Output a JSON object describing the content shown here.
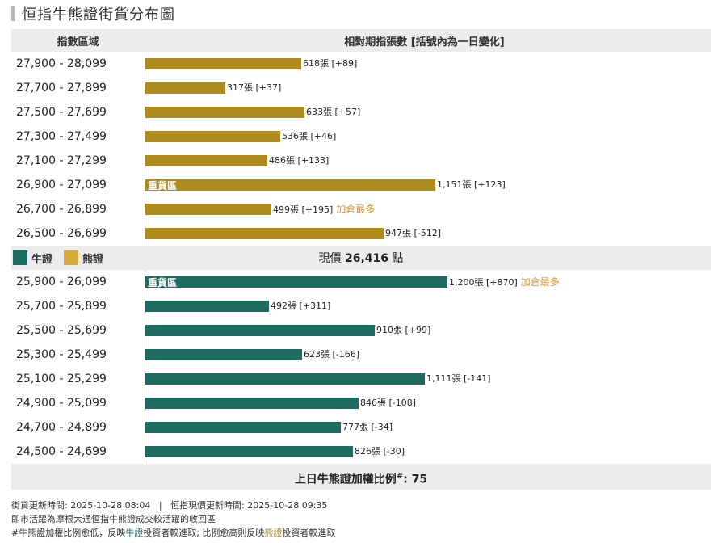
{
  "title": "恒指牛熊證街貨分布圖",
  "header": {
    "col_range": "指數區域",
    "col_value": "相對期指張數 [括號內為一日變化]"
  },
  "legend": {
    "bull": "牛證",
    "bear": "熊證"
  },
  "colors": {
    "bull": "#1e6b61",
    "bear": "#b08c1e"
  },
  "price": {
    "label": "現價",
    "value": "26,416",
    "unit": "點"
  },
  "ratio": {
    "label": "上日牛熊證加權比例",
    "sup": "#",
    "sep": ":",
    "value": "75"
  },
  "chart_data": {
    "type": "bar",
    "orientation": "horizontal",
    "unit": "張",
    "bear": [
      {
        "range": "27,900 - 28,099",
        "value": 618,
        "change": "+89",
        "label": "618張 [+89]"
      },
      {
        "range": "27,700 - 27,899",
        "value": 317,
        "change": "+37",
        "label": "317張 [+37]"
      },
      {
        "range": "27,500 - 27,699",
        "value": 633,
        "change": "+57",
        "label": "633張 [+57]"
      },
      {
        "range": "27,300 - 27,499",
        "value": 536,
        "change": "+46",
        "label": "536張 [+46]"
      },
      {
        "range": "27,100 - 27,299",
        "value": 486,
        "change": "+133",
        "label": "486張 [+133]"
      },
      {
        "range": "26,900 - 27,099",
        "value": 1151,
        "change": "+123",
        "label": "1,151張 [+123]",
        "heavy": "重貨區"
      },
      {
        "range": "26,700 - 26,899",
        "value": 499,
        "change": "+195",
        "label": "499張 [+195]",
        "most": "加倉最多"
      },
      {
        "range": "26,500 - 26,699",
        "value": 947,
        "change": "-512",
        "label": "947張 [-512]"
      }
    ],
    "bull": [
      {
        "range": "25,900 - 26,099",
        "value": 1200,
        "change": "+870",
        "label": "1,200張 [+870]",
        "heavy": "重貨區",
        "most": "加倉最多"
      },
      {
        "range": "25,700 - 25,899",
        "value": 492,
        "change": "+311",
        "label": "492張 [+311]"
      },
      {
        "range": "25,500 - 25,699",
        "value": 910,
        "change": "+99",
        "label": "910張 [+99]"
      },
      {
        "range": "25,300 - 25,499",
        "value": 623,
        "change": "-166",
        "label": "623張 [-166]"
      },
      {
        "range": "25,100 - 25,299",
        "value": 1111,
        "change": "-141",
        "label": "1,111張 [-141]"
      },
      {
        "range": "24,900 - 25,099",
        "value": 846,
        "change": "-108",
        "label": "846張 [-108]"
      },
      {
        "range": "24,700 - 24,899",
        "value": 777,
        "change": "-34",
        "label": "777張 [-34]"
      },
      {
        "range": "24,500 - 24,699",
        "value": 826,
        "change": "-30",
        "label": "826張 [-30]"
      }
    ]
  },
  "notes": {
    "update_label": "街貨更新時間:",
    "update_time": "2025-10-28 08:04",
    "sep": "|",
    "index_label": "恒指現價更新時間:",
    "index_time": "2025-10-28 09:35",
    "line2": "即市活躍為摩根大通恒指牛熊證成交較活躍的收回區",
    "line3_a": "#牛熊證加權比例愈低，反映",
    "line3_bull": "牛證",
    "line3_b": "投資者較進取; 比例愈高則反映",
    "line3_bear": "熊證",
    "line3_c": "投資者較進取"
  }
}
